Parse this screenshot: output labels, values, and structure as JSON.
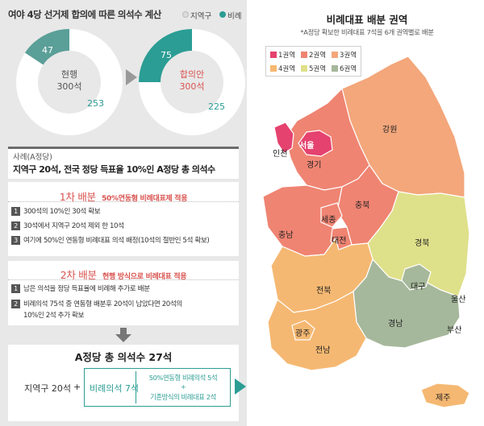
{
  "header": {
    "title": "여야 4당 선거제 합의에 따른 의석수 계산",
    "legend_district": "지역구",
    "legend_proportional": "비례"
  },
  "donuts": {
    "current": {
      "label": "현행",
      "total": "300석",
      "proportional": "47",
      "district": "253",
      "proportional_value": 47,
      "total_value": 300
    },
    "proposal": {
      "label": "합의안",
      "total": "300석",
      "proportional": "75",
      "district": "225",
      "proportional_value": 75,
      "total_value": 300
    }
  },
  "criteria": {
    "small": "사례(A정당)",
    "main": "지역구 20석, 전국 정당 득표율 10%인 A정당 총 의석수"
  },
  "step1": {
    "head": "1차 배분",
    "sub": "50%연동형 비례대표제 적용",
    "lines": [
      {
        "num": "1",
        "text": "300석의 10%인 30석 확보"
      },
      {
        "num": "2",
        "text": "30석에서 지역구 20석 제외 한 10석"
      },
      {
        "num": "3",
        "text": "여기에 50%인 연동형 비례대표 의석 배정(10석의 절반인 5석 확보)"
      }
    ]
  },
  "step2": {
    "head": "2차 배분",
    "sub": "현행 방식으로 비례대표 적용",
    "lines": [
      {
        "num": "1",
        "text": "남은 의석을 정당 득표율에 비례해 추가로 배분"
      },
      {
        "num": "2",
        "text": "비례의석 75석 중 연동형 배분후 20석이 남았다면 20석의"
      },
      {
        "num": "",
        "text": "10%인 2석 추가 확보"
      }
    ]
  },
  "total": {
    "title": "A정당 총 의석수 27석",
    "district": "지역구 20석",
    "plus": "+",
    "proportional": "비례의석 7석",
    "sub1": "50%연동형 비례의석 5석",
    "sub_plus": "+",
    "sub2": "기존방식의 비례대표 2석"
  },
  "map": {
    "title": "비례대표 배분 권역",
    "note": "*A정당 확보한 비례대표 7석을 6개 권역별로 배분",
    "legend": [
      {
        "label": "1권역",
        "color": "#e5426f"
      },
      {
        "label": "2권역",
        "color": "#ef8472"
      },
      {
        "label": "3권역",
        "color": "#f3a77b"
      },
      {
        "label": "4권역",
        "color": "#f5b872"
      },
      {
        "label": "5권역",
        "color": "#dfe08a"
      },
      {
        "label": "6권역",
        "color": "#a6b89b"
      }
    ],
    "cities": {
      "seoul": "서울",
      "incheon": "인천",
      "gyeonggi": "경기",
      "gangwon": "강원",
      "chungbuk": "충북",
      "sejong": "세종",
      "chungnam": "충남",
      "daejeon": "대전",
      "gyeongbuk": "경북",
      "daegu": "대구",
      "jeonbuk": "전북",
      "ulsan": "울산",
      "gwangju": "광주",
      "gyeongnam": "경남",
      "busan": "부산",
      "jeonnam": "전남",
      "jeju": "제주"
    }
  },
  "colors": {
    "teal": "#2b9d94",
    "red": "#d9534f",
    "zone1": "#e5426f",
    "zone2": "#ef8472",
    "zone3": "#f3a77b",
    "zone4": "#f5b872",
    "zone5": "#dfe08a",
    "zone6": "#a6b89b"
  }
}
